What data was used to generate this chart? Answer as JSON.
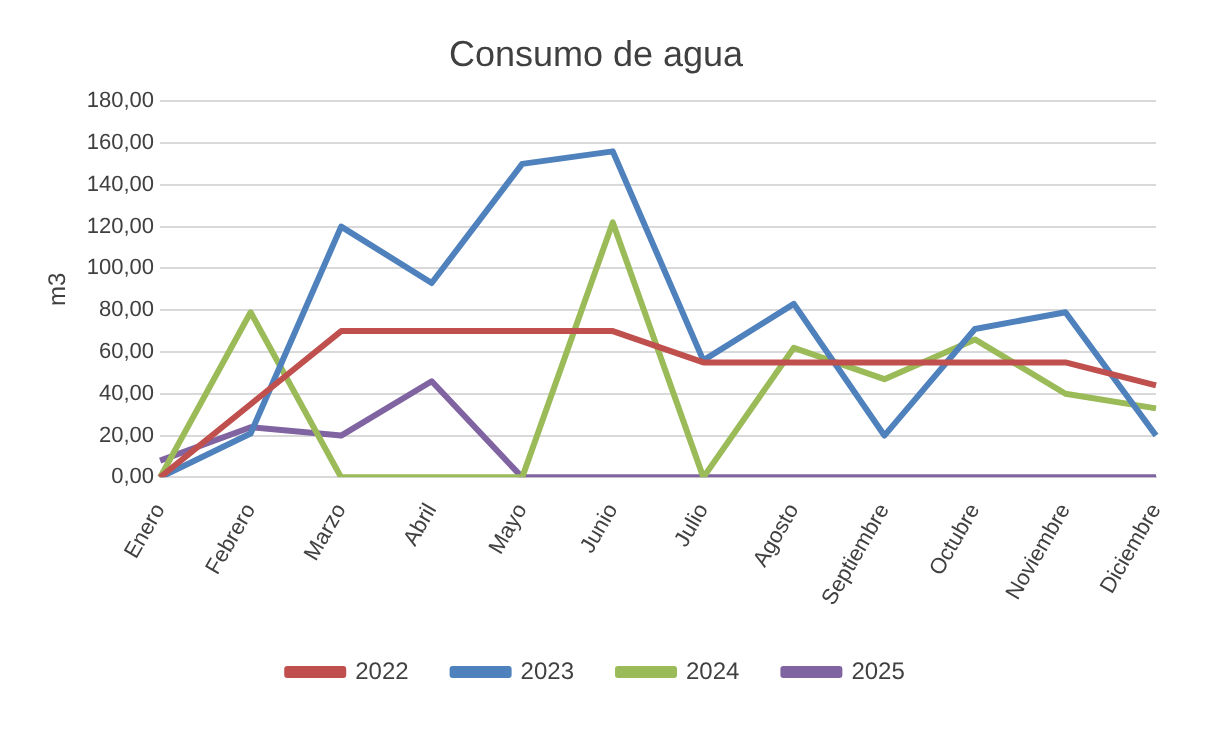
{
  "chart_data": {
    "type": "line",
    "title": "Consumo de agua",
    "ylabel": "m3",
    "categories": [
      "Enero",
      "Febrero",
      "Marzo",
      "Abril",
      "Mayo",
      "Junio",
      "Julio",
      "Agosto",
      "Septiembre",
      "Octubre",
      "Noviembre",
      "Diciembre"
    ],
    "series": [
      {
        "name": "2022",
        "color": "#c0504d",
        "values": [
          0,
          35,
          70,
          70,
          70,
          70,
          55,
          55,
          55,
          55,
          55,
          44
        ]
      },
      {
        "name": "2023",
        "color": "#4f81bd",
        "values": [
          0,
          21,
          120,
          93,
          150,
          156,
          56,
          83,
          20,
          71,
          79,
          20
        ]
      },
      {
        "name": "2024",
        "color": "#9bbb59",
        "values": [
          0,
          79,
          0,
          0,
          0,
          122,
          0,
          62,
          47,
          66,
          40,
          33
        ]
      },
      {
        "name": "2025",
        "color": "#8064a2",
        "values": [
          8,
          24,
          20,
          46,
          0,
          0,
          0,
          0,
          0,
          0,
          0,
          0
        ]
      }
    ],
    "ylim": [
      0,
      180
    ],
    "yticks": [
      {
        "value": 0,
        "label": "0,00"
      },
      {
        "value": 20,
        "label": "20,00"
      },
      {
        "value": 40,
        "label": "40,00"
      },
      {
        "value": 60,
        "label": "60,00"
      },
      {
        "value": 80,
        "label": "80,00"
      },
      {
        "value": 100,
        "label": "100,00"
      },
      {
        "value": 120,
        "label": "120,00"
      },
      {
        "value": 140,
        "label": "140,00"
      },
      {
        "value": 160,
        "label": "160,00"
      },
      {
        "value": 180,
        "label": "180,00"
      }
    ],
    "grid": "y",
    "legend": "bottom",
    "marker": "none",
    "line_style": "solid"
  }
}
